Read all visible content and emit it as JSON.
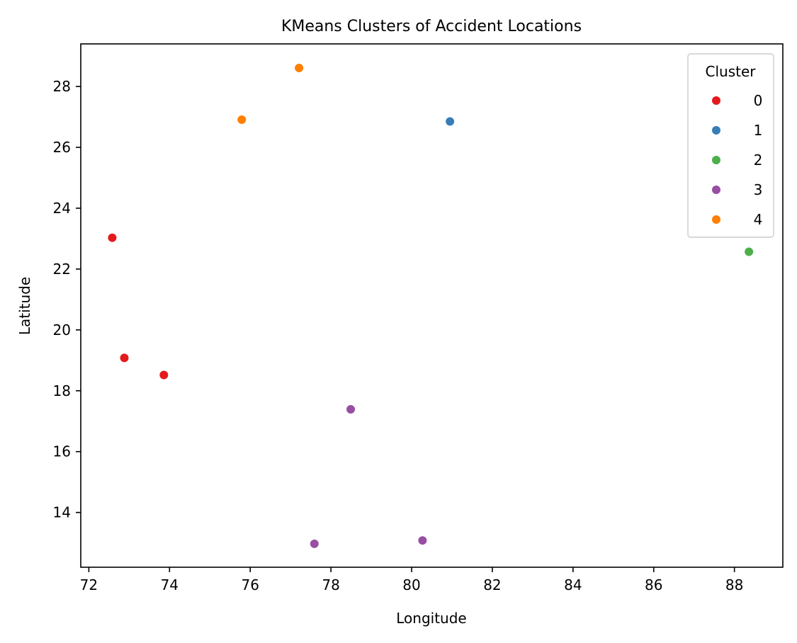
{
  "chart_data": {
    "type": "scatter",
    "title": "KMeans Clusters of Accident Locations",
    "xlabel": "Longitude",
    "ylabel": "Latitude",
    "xlim": [
      71.8,
      89.2
    ],
    "ylim": [
      12.2,
      29.4
    ],
    "x_ticks": [
      72,
      74,
      76,
      78,
      80,
      82,
      84,
      86,
      88
    ],
    "y_ticks": [
      14,
      16,
      18,
      20,
      22,
      24,
      26,
      28
    ],
    "grid": false,
    "legend": {
      "title": "Cluster",
      "placement": "top-right"
    },
    "series": [
      {
        "name": "0",
        "color": "#e41a1c",
        "points": [
          [
            72.58,
            23.03
          ],
          [
            72.88,
            19.08
          ],
          [
            73.86,
            18.52
          ]
        ]
      },
      {
        "name": "1",
        "color": "#377eb8",
        "points": [
          [
            80.95,
            26.85
          ]
        ]
      },
      {
        "name": "2",
        "color": "#4daf4a",
        "points": [
          [
            88.36,
            22.57
          ]
        ]
      },
      {
        "name": "3",
        "color": "#984ea3",
        "points": [
          [
            78.49,
            17.39
          ],
          [
            77.59,
            12.97
          ],
          [
            80.27,
            13.08
          ]
        ]
      },
      {
        "name": "4",
        "color": "#ff7f00",
        "points": [
          [
            77.21,
            28.61
          ],
          [
            75.79,
            26.91
          ]
        ]
      }
    ]
  }
}
